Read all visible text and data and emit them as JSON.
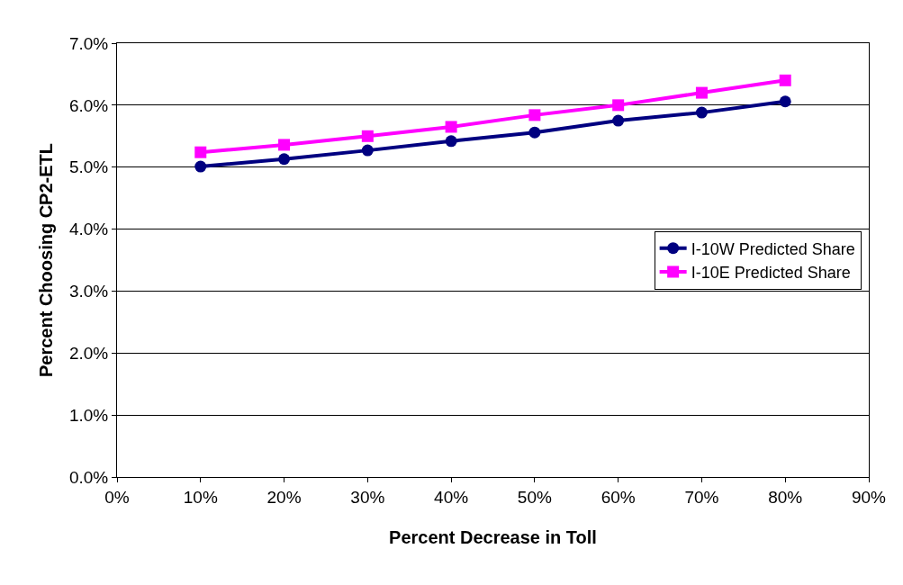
{
  "chart_data": {
    "type": "line",
    "xlabel": "Percent Decrease in Toll",
    "ylabel": "Percent Choosing CP2-ETL",
    "x": [
      10,
      20,
      30,
      40,
      50,
      60,
      70,
      80
    ],
    "series": [
      {
        "name": "I-10W Predicted Share",
        "color": "#000080",
        "marker": "circle",
        "values": [
          5.01,
          5.13,
          5.27,
          5.42,
          5.56,
          5.75,
          5.88,
          6.06
        ]
      },
      {
        "name": "I-10E Predicted Share",
        "color": "#ff00ff",
        "marker": "square",
        "values": [
          5.24,
          5.36,
          5.5,
          5.65,
          5.84,
          6.0,
          6.2,
          6.4
        ]
      }
    ],
    "xlim": [
      0,
      90
    ],
    "xticks": [
      {
        "value": 0,
        "label": "0%"
      },
      {
        "value": 10,
        "label": "10%"
      },
      {
        "value": 20,
        "label": "20%"
      },
      {
        "value": 30,
        "label": "30%"
      },
      {
        "value": 40,
        "label": "40%"
      },
      {
        "value": 50,
        "label": "50%"
      },
      {
        "value": 60,
        "label": "60%"
      },
      {
        "value": 70,
        "label": "70%"
      },
      {
        "value": 80,
        "label": "80%"
      },
      {
        "value": 90,
        "label": "90%"
      }
    ],
    "ylim": [
      0,
      7
    ],
    "yticks": [
      {
        "value": 0,
        "label": "0.0%"
      },
      {
        "value": 1,
        "label": "1.0%"
      },
      {
        "value": 2,
        "label": "2.0%"
      },
      {
        "value": 3,
        "label": "3.0%"
      },
      {
        "value": 4,
        "label": "4.0%"
      },
      {
        "value": 5,
        "label": "5.0%"
      },
      {
        "value": 6,
        "label": "6.0%"
      },
      {
        "value": 7,
        "label": "7.0%"
      }
    ],
    "grid": "y",
    "legend": "right",
    "line_style": "solid"
  }
}
